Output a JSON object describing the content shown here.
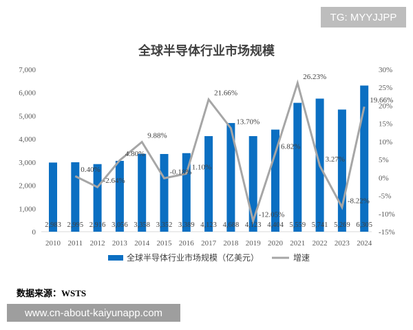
{
  "watermark": "TG: MYYJJPP",
  "source": "数据来源：WSTS",
  "site": "www.cn-about-kaiyunapp.com",
  "chart_data": {
    "type": "bar+line",
    "title": "全球半导体行业市场规模",
    "categories": [
      "2010",
      "2011",
      "2012",
      "2013",
      "2014",
      "2015",
      "2016",
      "2017",
      "2018",
      "2019",
      "2020",
      "2021",
      "2022",
      "2023",
      "2024"
    ],
    "series": [
      {
        "name": "全球半导体行业市场规模（亿美元）",
        "type": "bar",
        "axis": "left",
        "color": "#0b6fc2",
        "values": [
          2983,
          2995,
          2916,
          3056,
          3358,
          3352,
          3389,
          4123,
          4688,
          4123,
          4404,
          5559,
          5741,
          5269,
          6305
        ],
        "labels": [
          "2,983",
          "2,995",
          "2,916",
          "3,056",
          "3,358",
          "3,352",
          "3,389",
          "4,123",
          "4,688",
          "4,123",
          "4,404",
          "5,559",
          "5,741",
          "5,269",
          "6,305"
        ]
      },
      {
        "name": "增速",
        "type": "line",
        "axis": "right",
        "color": "#a6a6a6",
        "values": [
          null,
          0.4,
          -2.64,
          4.8,
          9.88,
          -0.18,
          1.1,
          21.66,
          13.7,
          -12.05,
          6.82,
          26.23,
          3.27,
          -8.22,
          19.66
        ],
        "labels": [
          "",
          "0.40%",
          "-2.64%",
          "4.80%",
          "9.88%",
          "-0.18%",
          "1.10%",
          "21.66%",
          "13.70%",
          "-12.05%",
          "6.82%",
          "26.23%",
          "3.27%",
          "-8.22%",
          "19.66%"
        ]
      }
    ],
    "y_left": {
      "range": [
        0,
        7000
      ],
      "ticks": [
        "0",
        "1,000",
        "2,000",
        "3,000",
        "4,000",
        "5,000",
        "6,000",
        "7,000"
      ]
    },
    "y_right": {
      "range": [
        -15,
        30
      ],
      "ticks": [
        "-15%",
        "-10%",
        "-5%",
        "0%",
        "5%",
        "10%",
        "15%",
        "20%",
        "25%",
        "30%"
      ]
    },
    "grid": false,
    "legend": "bottom"
  }
}
